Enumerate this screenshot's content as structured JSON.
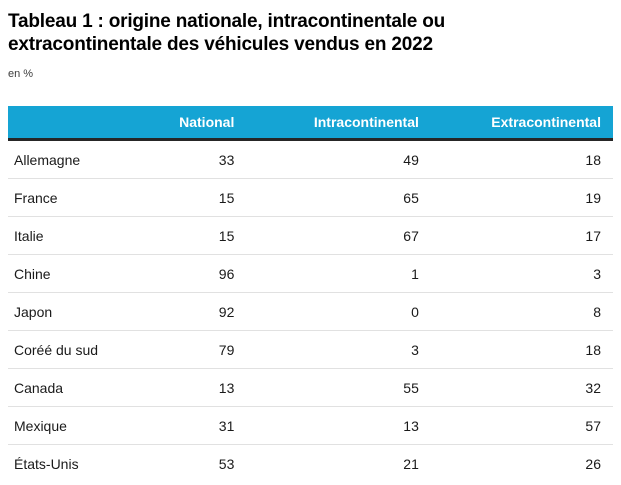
{
  "title": "Tableau 1 : origine nationale, intracontinentale ou extracontinentale des véhicules vendus en 2022",
  "subtitle": "en %",
  "colors": {
    "header_bg": "#15A4D4",
    "header_text": "#FFFFFF",
    "header_underline": "#262626",
    "row_separator": "#E1E1E1",
    "body_text": "#1A1A1A",
    "title_text": "#000000"
  },
  "table": {
    "header": {
      "col0": "",
      "col1": "National",
      "col2": "Intracontinental",
      "col3": "Extracontinental"
    },
    "rows": [
      {
        "label": "Allemagne",
        "national": "33",
        "intracontinental": "49",
        "extracontinental": "18"
      },
      {
        "label": "France",
        "national": "15",
        "intracontinental": "65",
        "extracontinental": "19"
      },
      {
        "label": "Italie",
        "national": "15",
        "intracontinental": "67",
        "extracontinental": "17"
      },
      {
        "label": "Chine",
        "national": "96",
        "intracontinental": "1",
        "extracontinental": "3"
      },
      {
        "label": "Japon",
        "national": "92",
        "intracontinental": "0",
        "extracontinental": "8"
      },
      {
        "label": "Coréé du sud",
        "national": "79",
        "intracontinental": "3",
        "extracontinental": "18"
      },
      {
        "label": "Canada",
        "national": "13",
        "intracontinental": "55",
        "extracontinental": "32"
      },
      {
        "label": "Mexique",
        "national": "31",
        "intracontinental": "13",
        "extracontinental": "57"
      },
      {
        "label": "États-Unis",
        "national": "53",
        "intracontinental": "21",
        "extracontinental": "26"
      }
    ]
  },
  "chart_data": {
    "type": "table",
    "title": "Tableau 1 : origine nationale, intracontinentale ou extracontinentale des véhicules vendus en 2022",
    "subtitle": "en %",
    "unit": "%",
    "categories": [
      "Allemagne",
      "France",
      "Italie",
      "Chine",
      "Japon",
      "Coréé du sud",
      "Canada",
      "Mexique",
      "États-Unis"
    ],
    "series": [
      {
        "name": "National",
        "values": [
          33,
          15,
          15,
          96,
          92,
          79,
          13,
          31,
          53
        ]
      },
      {
        "name": "Intracontinental",
        "values": [
          49,
          65,
          67,
          1,
          0,
          3,
          55,
          13,
          21
        ]
      },
      {
        "name": "Extracontinental",
        "values": [
          18,
          19,
          17,
          3,
          8,
          18,
          32,
          57,
          26
        ]
      }
    ]
  }
}
